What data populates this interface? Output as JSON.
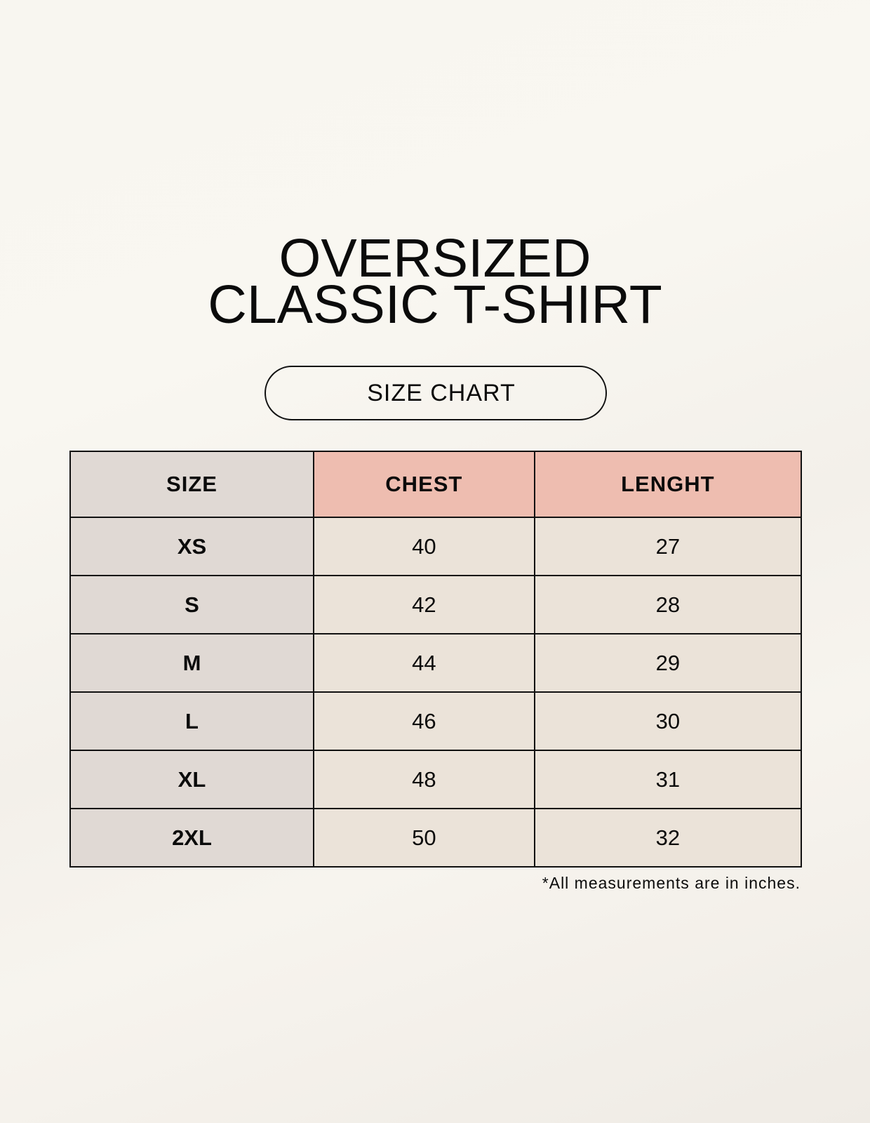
{
  "title_line1": "OVERSIZED",
  "title_line2": "CLASSIC T-SHIRT",
  "badge": "SIZE CHART",
  "table": {
    "headers": [
      "SIZE",
      "CHEST",
      "LENGHT"
    ],
    "rows": [
      [
        "XS",
        "40",
        "27"
      ],
      [
        "S",
        "42",
        "28"
      ],
      [
        "M",
        "44",
        "29"
      ],
      [
        "L",
        "46",
        "30"
      ],
      [
        "XL",
        "48",
        "31"
      ],
      [
        "2XL",
        "50",
        "32"
      ]
    ]
  },
  "footnote": "*All measurements are in inches.",
  "colors": {
    "size_column": "#e0d9d4",
    "header_accent": "#eebdb0",
    "value_cells": "#ebe3d9"
  }
}
